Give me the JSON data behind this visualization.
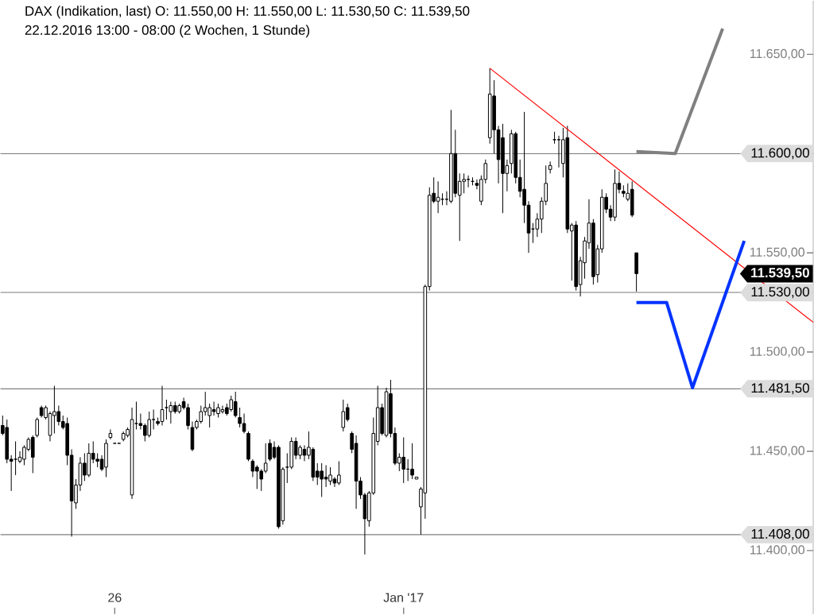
{
  "chart_data": {
    "type": "candlestick",
    "title": "DAX (Indikation, last)  O: 11.550,00  H: 11.550,00  L: 11.530,50  C: 11.539,50",
    "subtitle": "22.12.2016 13:00 - 08:00  (2 Wochen, 1 Stunde)",
    "categories": [
      null,
      null,
      null,
      null,
      null,
      null,
      null,
      null,
      null,
      null,
      null,
      null,
      null,
      null,
      null,
      null,
      null,
      null,
      null,
      null,
      null,
      null,
      null,
      null,
      null,
      null,
      "26",
      null,
      null,
      null,
      null,
      null,
      null,
      null,
      null,
      null,
      null,
      null,
      null,
      null,
      null,
      null,
      null,
      null,
      null,
      null,
      null,
      null,
      null,
      null,
      null,
      null,
      null,
      null,
      null,
      null,
      null,
      null,
      null,
      null,
      null,
      null,
      null,
      null,
      null,
      null,
      null,
      null,
      null,
      null,
      null,
      null,
      null,
      null,
      null,
      null,
      null,
      null,
      null,
      null,
      null,
      null,
      null,
      null,
      null,
      null,
      null,
      null,
      null,
      null,
      null,
      null,
      null,
      "Jan '17",
      null,
      null,
      null,
      null,
      null,
      null,
      null,
      null,
      null,
      null,
      null,
      null,
      null,
      null,
      null,
      null,
      null,
      null,
      null,
      null,
      null,
      null,
      null,
      null,
      null,
      null,
      null,
      null,
      null,
      null,
      null,
      null,
      null,
      null,
      null,
      null,
      null,
      null,
      null,
      null,
      null,
      null,
      null,
      null,
      null,
      null,
      null,
      null,
      null,
      null,
      null,
      null,
      null,
      null,
      null,
      null,
      null,
      null,
      null,
      null,
      null,
      null,
      null,
      null,
      null,
      null,
      null,
      null,
      null,
      null,
      null,
      null,
      null,
      null,
      null,
      null,
      null,
      null,
      null,
      null,
      null,
      null,
      null,
      null,
      null,
      null,
      null,
      null,
      null,
      null,
      null,
      null,
      null,
      null,
      null
    ],
    "ylim": [
      11368,
      11677
    ],
    "yticks": [
      {
        "value": 11400,
        "label": "11.400,00"
      },
      {
        "value": 11450,
        "label": "11.450,00"
      },
      {
        "value": 11500,
        "label": "11.500,00"
      },
      {
        "value": 11550,
        "label": "11.550,00"
      },
      {
        "value": 11650,
        "label": "11.650,00"
      }
    ],
    "series": [
      {
        "color": "#000000",
        "ohlc": [
          [
            11463,
            11468,
            11458,
            11459
          ],
          [
            11462,
            11466,
            11444,
            11446
          ],
          [
            11446,
            11448,
            11430,
            11445
          ],
          [
            11446,
            11455,
            11438,
            11446
          ],
          [
            11445,
            11450,
            11444,
            11447
          ],
          [
            11446,
            11453,
            11443,
            11452
          ],
          [
            11451,
            11457,
            11450,
            11456
          ],
          [
            11457,
            11458,
            11439,
            11447
          ],
          [
            11458,
            11467,
            11457,
            11466
          ],
          [
            11472,
            11473,
            11467,
            11468
          ],
          [
            11467,
            11473,
            11466,
            11472
          ],
          [
            11458,
            11470,
            11455,
            11469
          ],
          [
            11468,
            11483,
            11459,
            11470
          ],
          [
            11470,
            11473,
            11463,
            11465
          ],
          [
            11465,
            11468,
            11461,
            11462
          ],
          [
            11464,
            11467,
            11443,
            11448
          ],
          [
            11448,
            11451,
            11407,
            11425
          ],
          [
            11424,
            11436,
            11421,
            11433
          ],
          [
            11433,
            11447,
            11430,
            11444
          ],
          [
            11444,
            11449,
            11435,
            11438
          ],
          [
            11438,
            11454,
            11437,
            11449
          ],
          [
            11449,
            11455,
            11444,
            11446
          ],
          [
            11446,
            11449,
            11442,
            11445
          ],
          [
            11446,
            11448,
            11440,
            11441
          ],
          [
            11442,
            11456,
            11437,
            11454
          ],
          [
            11457,
            11461,
            11456,
            11459
          ],
          [
            11454,
            11454,
            11454,
            11454
          ],
          [
            11454,
            11454,
            11454,
            11454
          ],
          [
            11456,
            11460,
            11455,
            11459
          ],
          [
            11458,
            11462,
            11457,
            11461
          ],
          [
            11428,
            11472,
            11426,
            11466
          ],
          [
            11464,
            11475,
            11461,
            11464
          ],
          [
            11464,
            11469,
            11461,
            11463
          ],
          [
            11463,
            11464,
            11455,
            11458
          ],
          [
            11458,
            11470,
            11457,
            11466
          ],
          [
            11466,
            11471,
            11461,
            11466
          ],
          [
            11465,
            11467,
            11463,
            11464
          ],
          [
            11465,
            11483,
            11463,
            11471
          ],
          [
            11472,
            11476,
            11466,
            11472
          ],
          [
            11470,
            11475,
            11464,
            11473
          ],
          [
            11473,
            11475,
            11469,
            11470
          ],
          [
            11470,
            11474,
            11469,
            11473
          ],
          [
            11475,
            11477,
            11471,
            11472
          ],
          [
            11472,
            11474,
            11461,
            11463
          ],
          [
            11462,
            11465,
            11450,
            11451
          ],
          [
            11462,
            11466,
            11461,
            11465
          ],
          [
            11465,
            11473,
            11464,
            11470
          ],
          [
            11470,
            11480,
            11468,
            11472
          ],
          [
            11468,
            11474,
            11462,
            11472
          ],
          [
            11471,
            11475,
            11468,
            11470
          ],
          [
            11469,
            11474,
            11467,
            11472
          ],
          [
            11470,
            11473,
            11469,
            11471
          ],
          [
            11472,
            11474,
            11468,
            11469
          ],
          [
            11471,
            11478,
            11470,
            11476
          ],
          [
            11475,
            11480,
            11467,
            11468
          ],
          [
            11467,
            11472,
            11462,
            11464
          ],
          [
            11464,
            11469,
            11459,
            11460
          ],
          [
            11459,
            11460,
            11445,
            11446
          ],
          [
            11445,
            11446,
            11437,
            11440
          ],
          [
            11442,
            11443,
            11431,
            11440
          ],
          [
            11440,
            11441,
            11430,
            11436
          ],
          [
            11440,
            11454,
            11439,
            11444
          ],
          [
            11454,
            11456,
            11445,
            11446
          ],
          [
            11452,
            11455,
            11446,
            11447
          ],
          [
            11452,
            11453,
            11411,
            11412
          ],
          [
            11415,
            11442,
            11413,
            11441
          ],
          [
            11442,
            11449,
            11434,
            11442
          ],
          [
            11442,
            11457,
            11441,
            11455
          ],
          [
            11455,
            11457,
            11446,
            11448
          ],
          [
            11448,
            11453,
            11446,
            11452
          ],
          [
            11451,
            11453,
            11445,
            11448
          ],
          [
            11448,
            11460,
            11446,
            11452
          ],
          [
            11451,
            11452,
            11435,
            11437
          ],
          [
            11440,
            11444,
            11433,
            11437
          ],
          [
            11440,
            11444,
            11427,
            11436
          ],
          [
            11437,
            11443,
            11432,
            11436
          ],
          [
            11435,
            11442,
            11433,
            11438
          ],
          [
            11436,
            11437,
            11432,
            11434
          ],
          [
            11434,
            11445,
            11433,
            11438
          ],
          [
            11462,
            11476,
            11460,
            11470
          ],
          [
            11472,
            11474,
            11465,
            11466
          ],
          [
            11459,
            11460,
            11449,
            11451
          ],
          [
            11454,
            11458,
            11421,
            11435
          ],
          [
            11435,
            11437,
            11426,
            11428
          ],
          [
            11428,
            11429,
            11398,
            11416
          ],
          [
            11415,
            11430,
            11412,
            11429
          ],
          [
            11429,
            11467,
            11428,
            11459
          ],
          [
            11455,
            11483,
            11453,
            11472
          ],
          [
            11472,
            11474,
            11458,
            11459
          ],
          [
            11458,
            11482,
            11457,
            11480
          ],
          [
            11479,
            11486,
            11457,
            11459
          ],
          [
            11459,
            11462,
            11443,
            11444
          ],
          [
            11444,
            11449,
            11440,
            11447
          ],
          [
            11447,
            11457,
            11434,
            11441
          ],
          [
            11441,
            11446,
            11435,
            11441
          ],
          [
            11441,
            11454,
            11436,
            11438
          ],
          [
            11436,
            11437,
            11436,
            11437
          ],
          [
            11422,
            11432,
            11408,
            11431
          ],
          [
            11429,
            11534,
            11416,
            11533
          ],
          [
            11533,
            11583,
            11531,
            11579
          ],
          [
            11580,
            11588,
            11575,
            11576
          ],
          [
            11576,
            11586,
            11570,
            11578
          ],
          [
            11577,
            11580,
            11574,
            11577
          ],
          [
            11577,
            11581,
            11574,
            11577
          ],
          [
            11576,
            11622,
            11575,
            11600
          ],
          [
            11600,
            11612,
            11578,
            11580
          ],
          [
            11579,
            11590,
            11556,
            11586
          ],
          [
            11586,
            11590,
            11580,
            11587
          ],
          [
            11587,
            11589,
            11583,
            11587
          ],
          [
            11586,
            11588,
            11584,
            11586
          ],
          [
            11585,
            11587,
            11582,
            11584
          ],
          [
            11576,
            11589,
            11574,
            11587
          ],
          [
            11587,
            11597,
            11585,
            11595
          ],
          [
            11608,
            11643,
            11605,
            11630
          ],
          [
            11629,
            11637,
            11600,
            11612
          ],
          [
            11612,
            11614,
            11585,
            11597
          ],
          [
            11608,
            11615,
            11570,
            11590
          ],
          [
            11590,
            11597,
            11581,
            11594
          ],
          [
            11595,
            11612,
            11590,
            11610
          ],
          [
            11610,
            11611,
            11585,
            11588
          ],
          [
            11588,
            11597,
            11578,
            11581
          ],
          [
            11582,
            11621,
            11565,
            11574
          ],
          [
            11574,
            11576,
            11550,
            11560
          ],
          [
            11562,
            11565,
            11555,
            11562
          ],
          [
            11562,
            11570,
            11558,
            11567
          ],
          [
            11567,
            11578,
            11560,
            11576
          ],
          [
            11576,
            11594,
            11574,
            11585
          ],
          [
            11592,
            11596,
            11590,
            11594
          ],
          [
            11607,
            11611,
            11605,
            11607
          ],
          [
            11607,
            11609,
            11593,
            11607
          ],
          [
            11595,
            11613,
            11588,
            11607
          ],
          [
            11608,
            11614,
            11560,
            11562
          ],
          [
            11561,
            11565,
            11536,
            11564
          ],
          [
            11564,
            11566,
            11531,
            11533
          ],
          [
            11534,
            11548,
            11528,
            11546
          ],
          [
            11545,
            11558,
            11537,
            11556
          ],
          [
            11555,
            11577,
            11552,
            11565
          ],
          [
            11565,
            11567,
            11534,
            11538
          ],
          [
            11539,
            11554,
            11535,
            11552
          ],
          [
            11552,
            11582,
            11550,
            11578
          ],
          [
            11578,
            11580,
            11570,
            11572
          ],
          [
            11572,
            11574,
            11566,
            11568
          ],
          [
            11568,
            11592,
            11566,
            11585
          ],
          [
            11585,
            11591,
            11580,
            11582
          ],
          [
            11581,
            11584,
            11578,
            11580
          ],
          [
            11577,
            11585,
            11576,
            11580
          ],
          [
            11582,
            11586,
            11568,
            11569
          ],
          [
            11550,
            11550,
            11530.5,
            11539.5
          ],
          null,
          null,
          null,
          null,
          null,
          null,
          null,
          null,
          null,
          null,
          null,
          null,
          null,
          null,
          null,
          null,
          null,
          null,
          null,
          null,
          null,
          null,
          null,
          null,
          null,
          null,
          null,
          null,
          null,
          null,
          null,
          null,
          null,
          null,
          null,
          null,
          null,
          null,
          null,
          null,
          null
        ]
      },
      {
        "type": "line",
        "color": "#ff0000",
        "values": [
          null,
          null,
          null,
          null,
          null,
          null,
          null,
          null,
          null,
          null,
          null,
          null,
          null,
          null,
          null,
          null,
          null,
          null,
          null,
          null,
          null,
          null,
          null,
          null,
          null,
          null,
          null,
          null,
          null,
          null,
          null,
          null,
          null,
          null,
          null,
          null,
          null,
          null,
          null,
          null,
          null,
          null,
          null,
          null,
          null,
          null,
          null,
          null,
          null,
          null,
          null,
          null,
          null,
          null,
          null,
          null,
          null,
          null,
          null,
          null,
          null,
          null,
          null,
          null,
          null,
          null,
          null,
          null,
          null,
          null,
          null,
          null,
          null,
          null,
          null,
          null,
          null,
          null,
          null,
          null,
          null,
          null,
          null,
          null,
          null,
          null,
          null,
          null,
          null,
          null,
          null,
          null,
          null,
          null,
          null,
          null,
          null,
          null,
          null,
          null,
          null,
          null,
          null,
          null,
          null,
          null,
          null,
          null,
          null,
          null,
          null,
          null,
          null,
          11643,
          null,
          null,
          null,
          null,
          null,
          null,
          null,
          null,
          null,
          null,
          null,
          null,
          null,
          null,
          null,
          null,
          null,
          null,
          null,
          null,
          null,
          null,
          null,
          null,
          null,
          null,
          null,
          null,
          null,
          null,
          null,
          null,
          null,
          null,
          null,
          null,
          null,
          null,
          null,
          null,
          null,
          null,
          null,
          null,
          null,
          null,
          null,
          null,
          null,
          null,
          null,
          null,
          null,
          null,
          null,
          null,
          null,
          null,
          null,
          null,
          null,
          null,
          null,
          null,
          null,
          null,
          null,
          null,
          null,
          null,
          null,
          null,
          null,
          null,
          11515
        ]
      },
      {
        "type": "line",
        "color": "#0033ff",
        "values": [
          null,
          null,
          null,
          null,
          null,
          null,
          null,
          null,
          null,
          null,
          null,
          null,
          null,
          null,
          null,
          null,
          null,
          null,
          null,
          null,
          null,
          null,
          null,
          null,
          null,
          null,
          null,
          null,
          null,
          null,
          null,
          null,
          null,
          null,
          null,
          null,
          null,
          null,
          null,
          null,
          null,
          null,
          null,
          null,
          null,
          null,
          null,
          null,
          null,
          null,
          null,
          null,
          null,
          null,
          null,
          null,
          null,
          null,
          null,
          null,
          null,
          null,
          null,
          null,
          null,
          null,
          null,
          null,
          null,
          null,
          null,
          null,
          null,
          null,
          null,
          null,
          null,
          null,
          null,
          null,
          null,
          null,
          null,
          null,
          null,
          null,
          null,
          null,
          null,
          null,
          null,
          null,
          null,
          null,
          null,
          null,
          null,
          null,
          null,
          null,
          null,
          null,
          null,
          null,
          null,
          null,
          null,
          null,
          null,
          null,
          null,
          null,
          null,
          null,
          null,
          null,
          null,
          null,
          null,
          null,
          null,
          null,
          null,
          null,
          null,
          null,
          null,
          null,
          null,
          null,
          null,
          null,
          null,
          null,
          null,
          null,
          null,
          null,
          null,
          null,
          null,
          null,
          null,
          null,
          null,
          null,
          null,
          11525,
          null,
          null,
          null,
          null,
          null,
          null,
          11525,
          null,
          null,
          null,
          null,
          null,
          11482,
          null,
          null,
          null,
          null,
          null,
          null,
          null,
          null,
          null,
          null,
          null,
          11556,
          null,
          null,
          null,
          null,
          null,
          null,
          null,
          null,
          null,
          null,
          null,
          null,
          null,
          null,
          null,
          null
        ]
      },
      {
        "type": "line",
        "color": "#808080",
        "values": [
          null,
          null,
          null,
          null,
          null,
          null,
          null,
          null,
          null,
          null,
          null,
          null,
          null,
          null,
          null,
          null,
          null,
          null,
          null,
          null,
          null,
          null,
          null,
          null,
          null,
          null,
          null,
          null,
          null,
          null,
          null,
          null,
          null,
          null,
          null,
          null,
          null,
          null,
          null,
          null,
          null,
          null,
          null,
          null,
          null,
          null,
          null,
          null,
          null,
          null,
          null,
          null,
          null,
          null,
          null,
          null,
          null,
          null,
          null,
          null,
          null,
          null,
          null,
          null,
          null,
          null,
          null,
          null,
          null,
          null,
          null,
          null,
          null,
          null,
          null,
          null,
          null,
          null,
          null,
          null,
          null,
          null,
          null,
          null,
          null,
          null,
          null,
          null,
          null,
          null,
          null,
          null,
          null,
          null,
          null,
          null,
          null,
          null,
          null,
          null,
          null,
          null,
          null,
          null,
          null,
          null,
          null,
          null,
          null,
          null,
          null,
          null,
          null,
          null,
          null,
          null,
          null,
          null,
          null,
          null,
          null,
          null,
          null,
          null,
          null,
          null,
          null,
          null,
          null,
          null,
          null,
          null,
          null,
          null,
          null,
          null,
          null,
          null,
          null,
          null,
          null,
          null,
          null,
          null,
          null,
          null,
          null,
          11601,
          null,
          null,
          null,
          null,
          null,
          null,
          null,
          null,
          11600,
          null,
          null,
          null,
          null,
          null,
          null,
          null,
          null,
          null,
          null,
          11663,
          null,
          null,
          null,
          null,
          null,
          null,
          null,
          null,
          null,
          null,
          null,
          null,
          null,
          null,
          null,
          null,
          null,
          null,
          null,
          null,
          null
        ]
      }
    ],
    "ref_lines": [
      {
        "axis": "y",
        "value": 11600,
        "label": "11.600,00",
        "color": "#808080"
      },
      {
        "axis": "y",
        "value": 11530,
        "label": "11.530,00",
        "color": "#808080"
      },
      {
        "axis": "y",
        "value": 11481.5,
        "label": "11.481,50",
        "color": "#808080"
      },
      {
        "axis": "y",
        "value": 11408,
        "label": "11.408,00",
        "color": "#808080"
      }
    ],
    "annotations": [
      "11.539,50"
    ]
  }
}
